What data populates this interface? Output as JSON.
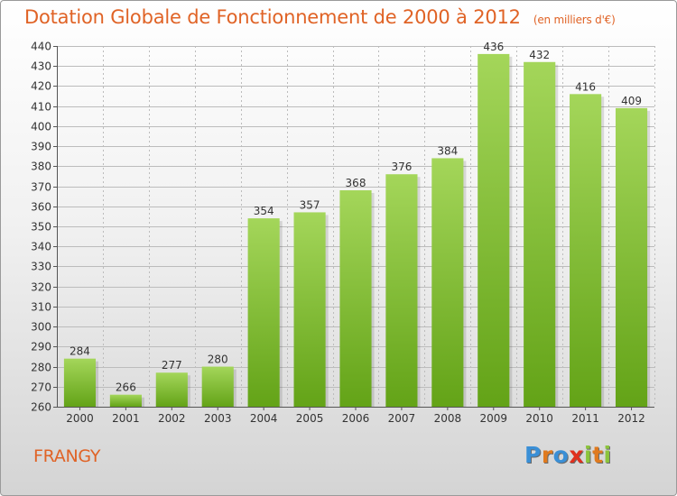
{
  "header": {
    "title": "Dotation Globale de Fonctionnement de 2000 à 2012",
    "subtitle": "(en milliers d'€)"
  },
  "footer": {
    "commune": "FRANGY",
    "logo": {
      "text": "Proxiti",
      "letters": [
        {
          "ch": "P",
          "color": "#3a8fd6"
        },
        {
          "ch": "r",
          "color": "#e07a1e"
        },
        {
          "ch": "o",
          "color": "#3a8fd6"
        },
        {
          "ch": "x",
          "color": "#e0301e"
        },
        {
          "ch": "i",
          "color": "#8cc43c"
        },
        {
          "ch": "t",
          "color": "#e07a1e"
        },
        {
          "ch": "i",
          "color": "#8cc43c"
        }
      ]
    }
  },
  "colors": {
    "title": "#e06326",
    "bar_top": "#a4d65a",
    "bar_bottom": "#63a317",
    "grid": "#bcbcbc",
    "axis_text": "#333333"
  },
  "chart_data": {
    "type": "bar",
    "title": "Dotation Globale de Fonctionnement de 2000 à 2012",
    "subtitle": "(en milliers d'€)",
    "categories": [
      "2000",
      "2001",
      "2002",
      "2003",
      "2004",
      "2005",
      "2006",
      "2007",
      "2008",
      "2009",
      "2010",
      "2011",
      "2012"
    ],
    "values": [
      284,
      266,
      277,
      280,
      354,
      357,
      368,
      376,
      384,
      436,
      432,
      416,
      409
    ],
    "ylim": [
      260,
      440
    ],
    "ytick_step": 10,
    "grid": true,
    "data_labels": true,
    "legend": "none"
  }
}
